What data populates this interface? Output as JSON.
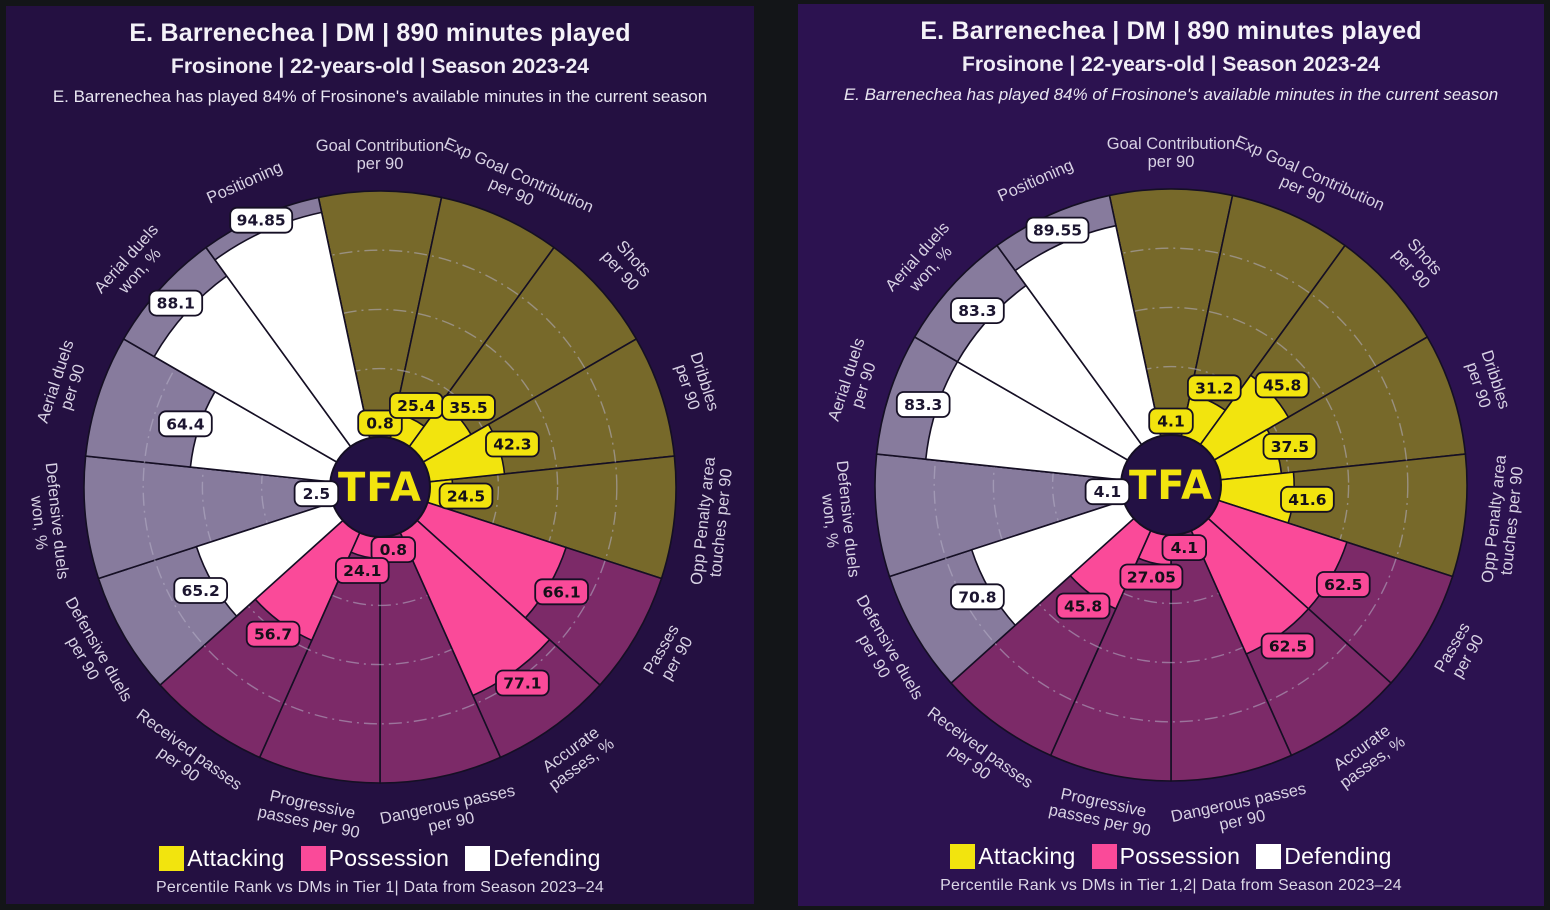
{
  "logo": "TFA",
  "colors": {
    "page_bg": "#131518",
    "panel_bg_left": "#241041",
    "panel_bg_right": "#2c1250",
    "attacking": "#f2e40e",
    "attacking_muted": "#77692a",
    "possession": "#fa4a99",
    "possession_muted": "#7c2a68",
    "defending": "#ffffff",
    "defending_muted": "#877b9d",
    "slice_border": "#150f24",
    "gridline": "#b7b0c6",
    "logo_bg": "#231144",
    "logo_text_color": "#f2e40e",
    "badge_text_dark": "#1c1530"
  },
  "panels": [
    {
      "title": "E. Barrenechea | DM | 890 minutes played",
      "subtitle": "Frosinone | 22-years-old | Season 2023-24",
      "note": "E. Barrenechea has played 84% of Frosinone's available minutes in the current season",
      "legend": [
        {
          "label": "Attacking",
          "group": "attacking"
        },
        {
          "label": "Possession",
          "group": "possession"
        },
        {
          "label": "Defending",
          "group": "defending"
        }
      ],
      "footer": "Percentile Rank vs DMs in Tier 1| Data from Season 2023–24"
    },
    {
      "title": "E. Barrenechea | DM | 890 minutes played",
      "subtitle": "Frosinone | 22-years-old | Season 2023-24",
      "note": "E. Barrenechea has played 84% of Frosinone's available minutes in the current season",
      "legend": [
        {
          "label": "Attacking",
          "group": "attacking"
        },
        {
          "label": "Possession",
          "group": "possession"
        },
        {
          "label": "Defending",
          "group": "defending"
        }
      ],
      "footer": "Percentile Rank vs DMs in Tier 1,2| Data from Season 2023–24"
    }
  ],
  "chart_data": [
    {
      "type": "pizza",
      "title": "Percentile Rank vs DMs in Tier 1",
      "axis_range": [
        0,
        100
      ],
      "gridlines": [
        20,
        40,
        60,
        80
      ],
      "slices": [
        {
          "param": "Goal Contribution per 90",
          "lines": [
            "Goal Contribution",
            "per 90"
          ],
          "value": "0.8",
          "group": "attacking"
        },
        {
          "param": "Exp Goal Contribution per 90",
          "lines": [
            "Exp Goal Contribution",
            "per 90"
          ],
          "value": "25.4",
          "group": "attacking"
        },
        {
          "param": "Shots per 90",
          "lines": [
            "Shots",
            "per 90"
          ],
          "value": "35.5",
          "group": "attacking"
        },
        {
          "param": "Dribbles per 90",
          "lines": [
            "Dribbles",
            "per 90"
          ],
          "value": "42.3",
          "group": "attacking"
        },
        {
          "param": "Opp Penalty area touches per 90",
          "lines": [
            "Opp Penalty area",
            "touches per 90"
          ],
          "value": "24.5",
          "group": "attacking"
        },
        {
          "param": "Passes per 90",
          "lines": [
            "Passes",
            "per 90"
          ],
          "value": "66.1",
          "group": "possession"
        },
        {
          "param": "Accurate passes, %",
          "lines": [
            "Accurate",
            "passes, %"
          ],
          "value": "77.1",
          "group": "possession"
        },
        {
          "param": "Dangerous passes per 90",
          "lines": [
            "Dangerous passes",
            "per 90"
          ],
          "value": "0.8",
          "group": "possession"
        },
        {
          "param": "Progressive passes per 90",
          "lines": [
            "Progressive",
            "passes per 90"
          ],
          "value": "24.1",
          "group": "possession"
        },
        {
          "param": "Received passes per 90",
          "lines": [
            "Received passes",
            "per 90"
          ],
          "value": "56.7",
          "group": "possession"
        },
        {
          "param": "Defensive duels per 90",
          "lines": [
            "Defensive duels",
            "per 90"
          ],
          "value": "65.2",
          "group": "defending"
        },
        {
          "param": "Defensive duels won, %",
          "lines": [
            "Defensive duels",
            "won, %"
          ],
          "value": "2.5",
          "group": "defending"
        },
        {
          "param": "Aerial duels per 90",
          "lines": [
            "Aerial duels",
            "per 90"
          ],
          "value": "64.4",
          "group": "defending"
        },
        {
          "param": "Aerial duels won, %",
          "lines": [
            "Aerial duels",
            "won, %"
          ],
          "value": "88.1",
          "group": "defending"
        },
        {
          "param": "Positioning",
          "lines": [
            "Positioning"
          ],
          "value": "94.85",
          "group": "defending"
        }
      ]
    },
    {
      "type": "pizza",
      "title": "Percentile Rank vs DMs in Tier 1,2",
      "axis_range": [
        0,
        100
      ],
      "gridlines": [
        20,
        40,
        60,
        80
      ],
      "slices": [
        {
          "param": "Goal Contribution per 90",
          "lines": [
            "Goal Contribution",
            "per 90"
          ],
          "value": "4.1",
          "group": "attacking"
        },
        {
          "param": "Exp Goal Contribution per 90",
          "lines": [
            "Exp Goal Contribution",
            "per 90"
          ],
          "value": "31.2",
          "group": "attacking"
        },
        {
          "param": "Shots per 90",
          "lines": [
            "Shots",
            "per 90"
          ],
          "value": "45.8",
          "group": "attacking"
        },
        {
          "param": "Dribbles per 90",
          "lines": [
            "Dribbles",
            "per 90"
          ],
          "value": "37.5",
          "group": "attacking"
        },
        {
          "param": "Opp Penalty area touches per 90",
          "lines": [
            "Opp Penalty area",
            "touches per 90"
          ],
          "value": "41.6",
          "group": "attacking"
        },
        {
          "param": "Passes per 90",
          "lines": [
            "Passes",
            "per 90"
          ],
          "value": "62.5",
          "group": "possession"
        },
        {
          "param": "Accurate passes, %",
          "lines": [
            "Accurate",
            "passes, %"
          ],
          "value": "62.5",
          "group": "possession"
        },
        {
          "param": "Dangerous passes per 90",
          "lines": [
            "Dangerous passes",
            "per 90"
          ],
          "value": "4.1",
          "group": "possession"
        },
        {
          "param": "Progressive passes per 90",
          "lines": [
            "Progressive",
            "passes per 90"
          ],
          "value": "27.05",
          "group": "possession"
        },
        {
          "param": "Received passes per 90",
          "lines": [
            "Received passes",
            "per 90"
          ],
          "value": "45.8",
          "group": "possession"
        },
        {
          "param": "Defensive duels per 90",
          "lines": [
            "Defensive duels",
            "per 90"
          ],
          "value": "70.8",
          "group": "defending"
        },
        {
          "param": "Defensive duels won, %",
          "lines": [
            "Defensive duels",
            "won, %"
          ],
          "value": "4.1",
          "group": "defending"
        },
        {
          "param": "Aerial duels per 90",
          "lines": [
            "Aerial duels",
            "per 90"
          ],
          "value": "83.3",
          "group": "defending"
        },
        {
          "param": "Aerial duels won, %",
          "lines": [
            "Aerial duels",
            "won, %"
          ],
          "value": "83.3",
          "group": "defending"
        },
        {
          "param": "Positioning",
          "lines": [
            "Positioning"
          ],
          "value": "89.55",
          "group": "defending"
        }
      ]
    }
  ]
}
